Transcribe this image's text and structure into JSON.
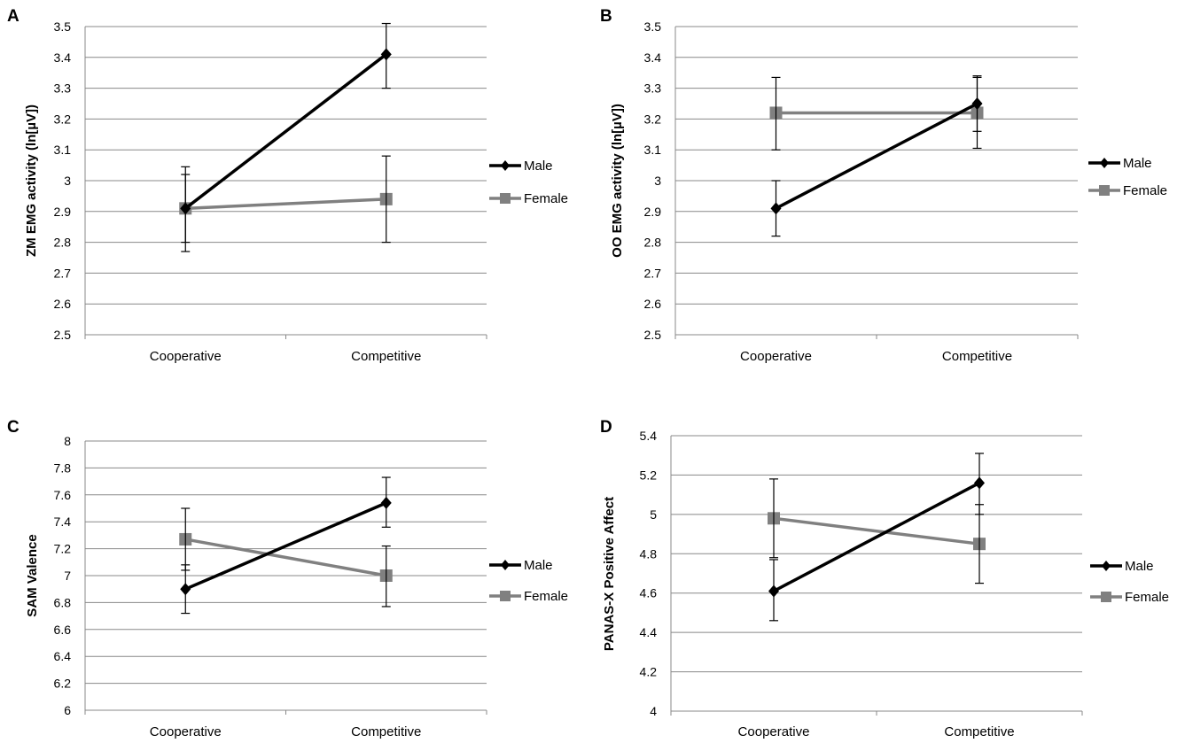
{
  "colors": {
    "male": "#000000",
    "female": "#808080",
    "grid": "#888888",
    "axis": "#888888"
  },
  "chart_data": [
    {
      "panel": "A",
      "type": "line",
      "categories": [
        "Cooperative",
        "Competitive"
      ],
      "ylabel": "ZM EMG activity  (ln[µV])",
      "ylim": [
        2.5,
        3.5
      ],
      "yticks": [
        "2.5",
        "2.6",
        "2.7",
        "2.8",
        "2.9",
        "3",
        "3.1",
        "3.2",
        "3.3",
        "3.4",
        "3.5"
      ],
      "grid": true,
      "legend": "right",
      "series": [
        {
          "name": "Male",
          "marker": "diamond",
          "values": [
            2.91,
            3.41
          ],
          "error_low": [
            2.8,
            3.3
          ],
          "error_high": [
            3.02,
            3.51
          ]
        },
        {
          "name": "Female",
          "marker": "square",
          "values": [
            2.91,
            2.94
          ],
          "error_low": [
            2.77,
            2.8
          ],
          "error_high": [
            3.045,
            3.08
          ]
        }
      ]
    },
    {
      "panel": "B",
      "type": "line",
      "categories": [
        "Cooperative",
        "Competitive"
      ],
      "ylabel": "OO EMG activity  (ln[µV])",
      "ylim": [
        2.5,
        3.5
      ],
      "yticks": [
        "2.5",
        "2.6",
        "2.7",
        "2.8",
        "2.9",
        "3",
        "3.1",
        "3.2",
        "3.3",
        "3.4",
        "3.5"
      ],
      "grid": true,
      "legend": "right",
      "series": [
        {
          "name": "Male",
          "marker": "diamond",
          "values": [
            2.91,
            3.25
          ],
          "error_low": [
            2.82,
            3.16
          ],
          "error_high": [
            3.0,
            3.34
          ]
        },
        {
          "name": "Female",
          "marker": "square",
          "values": [
            3.22,
            3.22
          ],
          "error_low": [
            3.1,
            3.105
          ],
          "error_high": [
            3.335,
            3.335
          ]
        }
      ]
    },
    {
      "panel": "C",
      "type": "line",
      "categories": [
        "Cooperative",
        "Competitive"
      ],
      "ylabel": "SAM Valence",
      "ylim": [
        6,
        8
      ],
      "yticks": [
        "6",
        "6.2",
        "6.4",
        "6.6",
        "6.8",
        "7",
        "7.2",
        "7.4",
        "7.6",
        "7.8",
        "8"
      ],
      "grid": true,
      "legend": "right",
      "series": [
        {
          "name": "Male",
          "marker": "diamond",
          "values": [
            6.9,
            7.54
          ],
          "error_low": [
            6.72,
            7.36
          ],
          "error_high": [
            7.08,
            7.73
          ]
        },
        {
          "name": "Female",
          "marker": "square",
          "values": [
            7.27,
            7.0
          ],
          "error_low": [
            7.04,
            6.77
          ],
          "error_high": [
            7.5,
            7.22
          ]
        }
      ]
    },
    {
      "panel": "D",
      "type": "line",
      "categories": [
        "Cooperative",
        "Competitive"
      ],
      "ylabel": "PANAS-X Positive Affect",
      "ylim": [
        4,
        5.4
      ],
      "yticks": [
        "4",
        "4.2",
        "4.4",
        "4.6",
        "4.8",
        "5",
        "5.2",
        "5.4"
      ],
      "grid": true,
      "legend": "right",
      "series": [
        {
          "name": "Male",
          "marker": "diamond",
          "values": [
            4.61,
            5.16
          ],
          "error_low": [
            4.46,
            5.0
          ],
          "error_high": [
            4.77,
            5.31
          ]
        },
        {
          "name": "Female",
          "marker": "square",
          "values": [
            4.98,
            4.85
          ],
          "error_low": [
            4.78,
            4.65
          ],
          "error_high": [
            5.18,
            5.05
          ]
        }
      ]
    }
  ]
}
